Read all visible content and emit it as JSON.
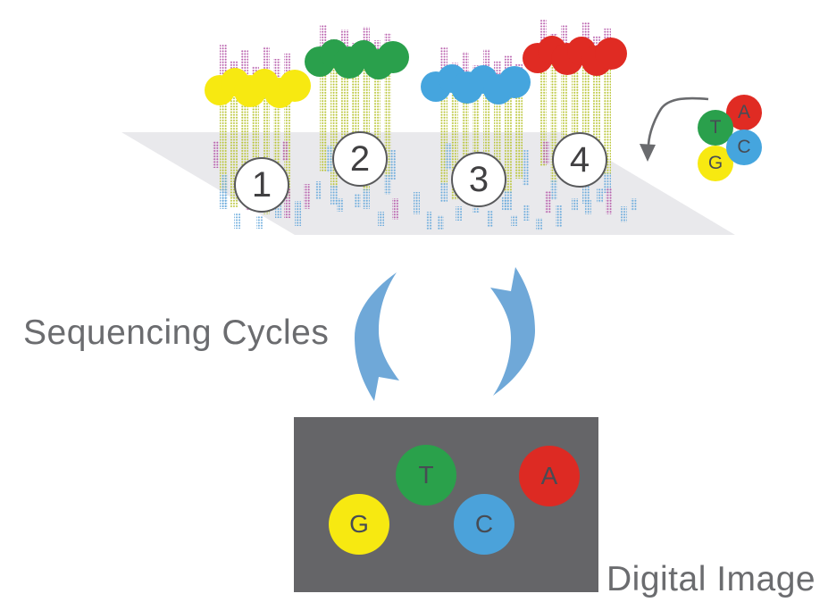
{
  "labels": {
    "sequencing_cycles": "Sequencing Cycles",
    "digital_image": "Digital Image"
  },
  "clusters": [
    {
      "number": "1",
      "ball_color": "#f7e911"
    },
    {
      "number": "2",
      "ball_color": "#2aa04c"
    },
    {
      "number": "3",
      "ball_color": "#45a5de"
    },
    {
      "number": "4",
      "ball_color": "#e02b23"
    }
  ],
  "nucleotide_legend": [
    {
      "letter": "A",
      "color": "#e02b23"
    },
    {
      "letter": "T",
      "color": "#2aa04c"
    },
    {
      "letter": "G",
      "color": "#f7e911"
    },
    {
      "letter": "C",
      "color": "#45a5de"
    }
  ],
  "digital_image_spots": [
    {
      "letter": "G",
      "color": "#f7e911"
    },
    {
      "letter": "T",
      "color": "#2aa14b"
    },
    {
      "letter": "C",
      "color": "#4ba2da"
    },
    {
      "letter": "A",
      "color": "#dd2a23"
    }
  ],
  "colors": {
    "strand_olive": "#b8c433",
    "strand_magenta": "#b85fac",
    "strand_blue": "#6babdc",
    "surface_gray": "#e9e9ec",
    "panel_gray": "#656568",
    "cycle_arrow_blue": "#6fa8d8",
    "text_gray": "#6b6c6f",
    "letter_dark": "#474c54",
    "badge_border": "#58595b",
    "badge_number": "#414042",
    "arrow_gray": "#6a6b6e"
  }
}
